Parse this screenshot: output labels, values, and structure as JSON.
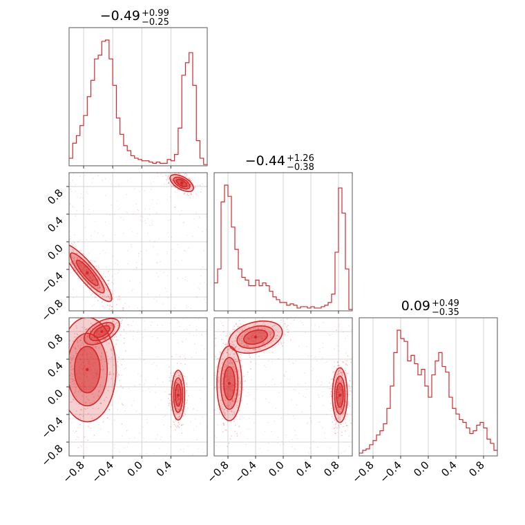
{
  "chart_data": {
    "type": "corner",
    "color": "#d62728",
    "titles": [
      {
        "median": "−0.49",
        "plus": "+0.99",
        "minus": "−0.25"
      },
      {
        "median": "−0.44",
        "plus": "+1.26",
        "minus": "−0.38"
      },
      {
        "median": "0.09",
        "plus": "+0.49",
        "minus": "−0.35"
      }
    ],
    "ranges": [
      [
        -1.0,
        0.9
      ],
      [
        -1.0,
        1.0
      ],
      [
        -1.0,
        1.0
      ]
    ],
    "tick_values": [
      [
        -0.8,
        -0.4,
        0.0,
        0.4
      ],
      [
        -0.8,
        -0.4,
        0.0,
        0.4,
        0.8
      ],
      [
        -0.8,
        -0.4,
        0.0,
        0.4,
        0.8
      ]
    ],
    "tick_labels": [
      [
        "−0.8",
        "−0.4",
        "0.0",
        "0.4"
      ],
      [
        "−0.8",
        "−0.4",
        "0.0",
        "0.4",
        "0.8"
      ],
      [
        "−0.8",
        "−0.4",
        "0.0",
        "0.4",
        "0.8"
      ]
    ],
    "histograms": [
      [
        6,
        18,
        24,
        32,
        40,
        55,
        68,
        85,
        88,
        99,
        100,
        85,
        64,
        38,
        25,
        16,
        12,
        8,
        6,
        5,
        4,
        4,
        3,
        2,
        3,
        2,
        2,
        5,
        4,
        9,
        30,
        72,
        82,
        90,
        64,
        20,
        6,
        1
      ],
      [
        20,
        30,
        78,
        90,
        82,
        60,
        44,
        30,
        24,
        22,
        18,
        18,
        22,
        18,
        20,
        18,
        14,
        10,
        8,
        6,
        6,
        4,
        5,
        4,
        2,
        3,
        3,
        2,
        3,
        2,
        2,
        3,
        4,
        6,
        12,
        42,
        88,
        70,
        30,
        1
      ],
      [
        2,
        4,
        5,
        8,
        11,
        15,
        18,
        23,
        34,
        50,
        74,
        90,
        84,
        82,
        68,
        72,
        66,
        58,
        62,
        50,
        42,
        58,
        68,
        74,
        64,
        60,
        42,
        34,
        30,
        26,
        24,
        20,
        16,
        18,
        22,
        24,
        20,
        12,
        9,
        4
      ]
    ],
    "contours_2d": [
      {
        "x_dim": 0,
        "y_dim": 1,
        "modes": [
          {
            "x": 0.55,
            "y": 0.85,
            "sx": 0.1,
            "sy": 0.05,
            "rot": -30,
            "w": 1.0
          },
          {
            "x": -0.75,
            "y": -0.45,
            "sx": 0.28,
            "sy": 0.07,
            "rot": -50,
            "w": 1.0
          }
        ]
      },
      {
        "x_dim": 0,
        "y_dim": 2,
        "modes": [
          {
            "x": -0.75,
            "y": 0.25,
            "sx": 0.22,
            "sy": 0.42,
            "rot": 0,
            "w": 1.0
          },
          {
            "x": -0.55,
            "y": 0.8,
            "sx": 0.15,
            "sy": 0.08,
            "rot": 30,
            "w": 0.6
          },
          {
            "x": 0.5,
            "y": -0.12,
            "sx": 0.05,
            "sy": 0.2,
            "rot": 0,
            "w": 0.9
          }
        ]
      },
      {
        "x_dim": 1,
        "y_dim": 2,
        "modes": [
          {
            "x": -0.78,
            "y": 0.05,
            "sx": 0.1,
            "sy": 0.3,
            "rot": 0,
            "w": 1.0
          },
          {
            "x": -0.4,
            "y": 0.72,
            "sx": 0.22,
            "sy": 0.12,
            "rot": 15,
            "w": 0.7
          },
          {
            "x": 0.82,
            "y": -0.12,
            "sx": 0.06,
            "sy": 0.22,
            "rot": 0,
            "w": 1.0
          }
        ]
      }
    ]
  }
}
